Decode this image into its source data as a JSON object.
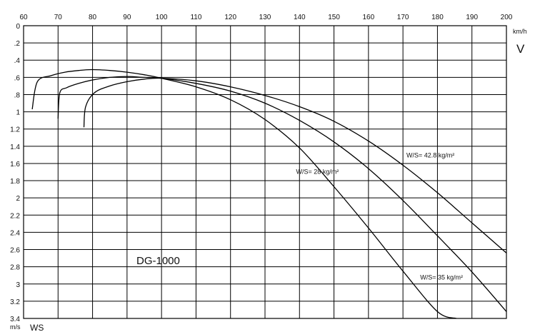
{
  "chart_data": {
    "type": "line",
    "title": "DG-1000",
    "x_axis": {
      "label": "V",
      "unit": "km/h",
      "position": "top",
      "range": [
        60,
        200
      ],
      "ticks": [
        60,
        70,
        80,
        90,
        100,
        110,
        120,
        130,
        140,
        150,
        160,
        170,
        180,
        190,
        200
      ]
    },
    "y_axis": {
      "label": "WS",
      "unit": "m/s",
      "inverted": true,
      "range": [
        0,
        3.4
      ],
      "ticks": [
        "0",
        ".2",
        ".4",
        ".6",
        ".8",
        "1",
        "1.2",
        "1.4",
        "1.6",
        "1.8",
        "2",
        "2.2",
        "2.4",
        "2.6",
        "2.8",
        "3",
        "3.2",
        "3.4"
      ]
    },
    "grid": true,
    "series": [
      {
        "name": "W/S= 28 kg/m²",
        "x": [
          62.5,
          64,
          68,
          72,
          76,
          80,
          85,
          90,
          95,
          100,
          110,
          120,
          130,
          140,
          150,
          160,
          170,
          180,
          185.5
        ],
        "y": [
          0.97,
          0.65,
          0.58,
          0.54,
          0.52,
          0.51,
          0.52,
          0.54,
          0.57,
          0.61,
          0.71,
          0.86,
          1.09,
          1.42,
          1.87,
          2.35,
          2.85,
          3.32,
          3.4
        ]
      },
      {
        "name": "W/S= 35 kg/m²",
        "x": [
          70,
          70.5,
          72.5,
          76,
          80,
          85,
          90,
          95,
          100,
          110,
          120,
          130,
          140,
          150,
          160,
          170,
          180,
          190,
          200
        ],
        "y": [
          1.08,
          0.78,
          0.72,
          0.67,
          0.63,
          0.6,
          0.59,
          0.6,
          0.61,
          0.67,
          0.76,
          0.9,
          1.1,
          1.35,
          1.66,
          2.03,
          2.44,
          2.86,
          3.32
        ]
      },
      {
        "name": "W/S= 42.8 kg/m²",
        "x": [
          77.5,
          78,
          80.5,
          85,
          90,
          95,
          100,
          110,
          120,
          130,
          140,
          150,
          160,
          170,
          180,
          190,
          200
        ],
        "y": [
          1.18,
          0.94,
          0.78,
          0.7,
          0.65,
          0.62,
          0.61,
          0.64,
          0.71,
          0.81,
          0.94,
          1.11,
          1.34,
          1.62,
          1.94,
          2.29,
          2.64
        ]
      }
    ],
    "annotations": [
      {
        "text": "W/S= 28 kg/m²",
        "x": 139,
        "y": 1.72
      },
      {
        "text": "W/S= 42.8 kg/m²",
        "x": 171,
        "y": 1.53
      },
      {
        "text": "W/S= 35 kg/m²",
        "x": 175,
        "y": 2.95
      }
    ]
  }
}
